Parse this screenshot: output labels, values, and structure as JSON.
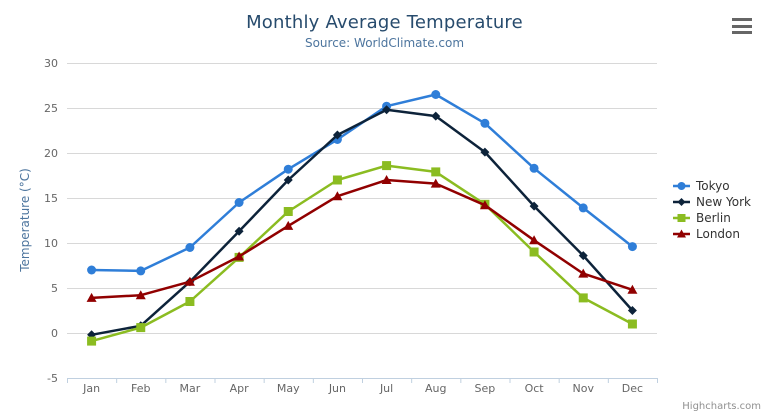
{
  "header": {
    "title": "Monthly Average Temperature",
    "subtitle": "Source: WorldClimate.com"
  },
  "credits": "Highcharts.com",
  "colors": {
    "title": "#274b6d",
    "subtitle": "#4d759e",
    "axis_title": "#4d759e",
    "tick_label": "#666666",
    "gridline": "#d8d8d8",
    "axis_line": "#c0d0e0",
    "legend_text": "#333333",
    "credits_text": "#909090",
    "menu_icon": "#666666"
  },
  "chart_data": {
    "type": "line",
    "title": "Monthly Average Temperature",
    "subtitle": "Source: WorldClimate.com",
    "categories": [
      "Jan",
      "Feb",
      "Mar",
      "Apr",
      "May",
      "Jun",
      "Jul",
      "Aug",
      "Sep",
      "Oct",
      "Nov",
      "Dec"
    ],
    "xlabel": "",
    "ylabel": "Temperature (°C)",
    "ylim": [
      -5,
      30
    ],
    "ytick_step": 5,
    "yticks": [
      -5,
      0,
      5,
      10,
      15,
      20,
      25,
      30
    ],
    "grid": true,
    "legend_position": "right",
    "series": [
      {
        "name": "Tokyo",
        "color": "#2f7ed8",
        "marker": "circle",
        "values": [
          7.0,
          6.9,
          9.5,
          14.5,
          18.2,
          21.5,
          25.2,
          26.5,
          23.3,
          18.3,
          13.9,
          9.6
        ]
      },
      {
        "name": "New York",
        "color": "#0d233a",
        "marker": "diamond",
        "values": [
          -0.2,
          0.8,
          5.7,
          11.3,
          17.0,
          22.0,
          24.8,
          24.1,
          20.1,
          14.1,
          8.6,
          2.5
        ]
      },
      {
        "name": "Berlin",
        "color": "#8bbc21",
        "marker": "square",
        "values": [
          -0.9,
          0.6,
          3.5,
          8.4,
          13.5,
          17.0,
          18.6,
          17.9,
          14.3,
          9.0,
          3.9,
          1.0
        ]
      },
      {
        "name": "London",
        "color": "#910000",
        "marker": "triangle",
        "values": [
          3.9,
          4.2,
          5.7,
          8.5,
          11.9,
          15.2,
          17.0,
          16.6,
          14.2,
          10.3,
          6.6,
          4.8
        ]
      }
    ]
  }
}
